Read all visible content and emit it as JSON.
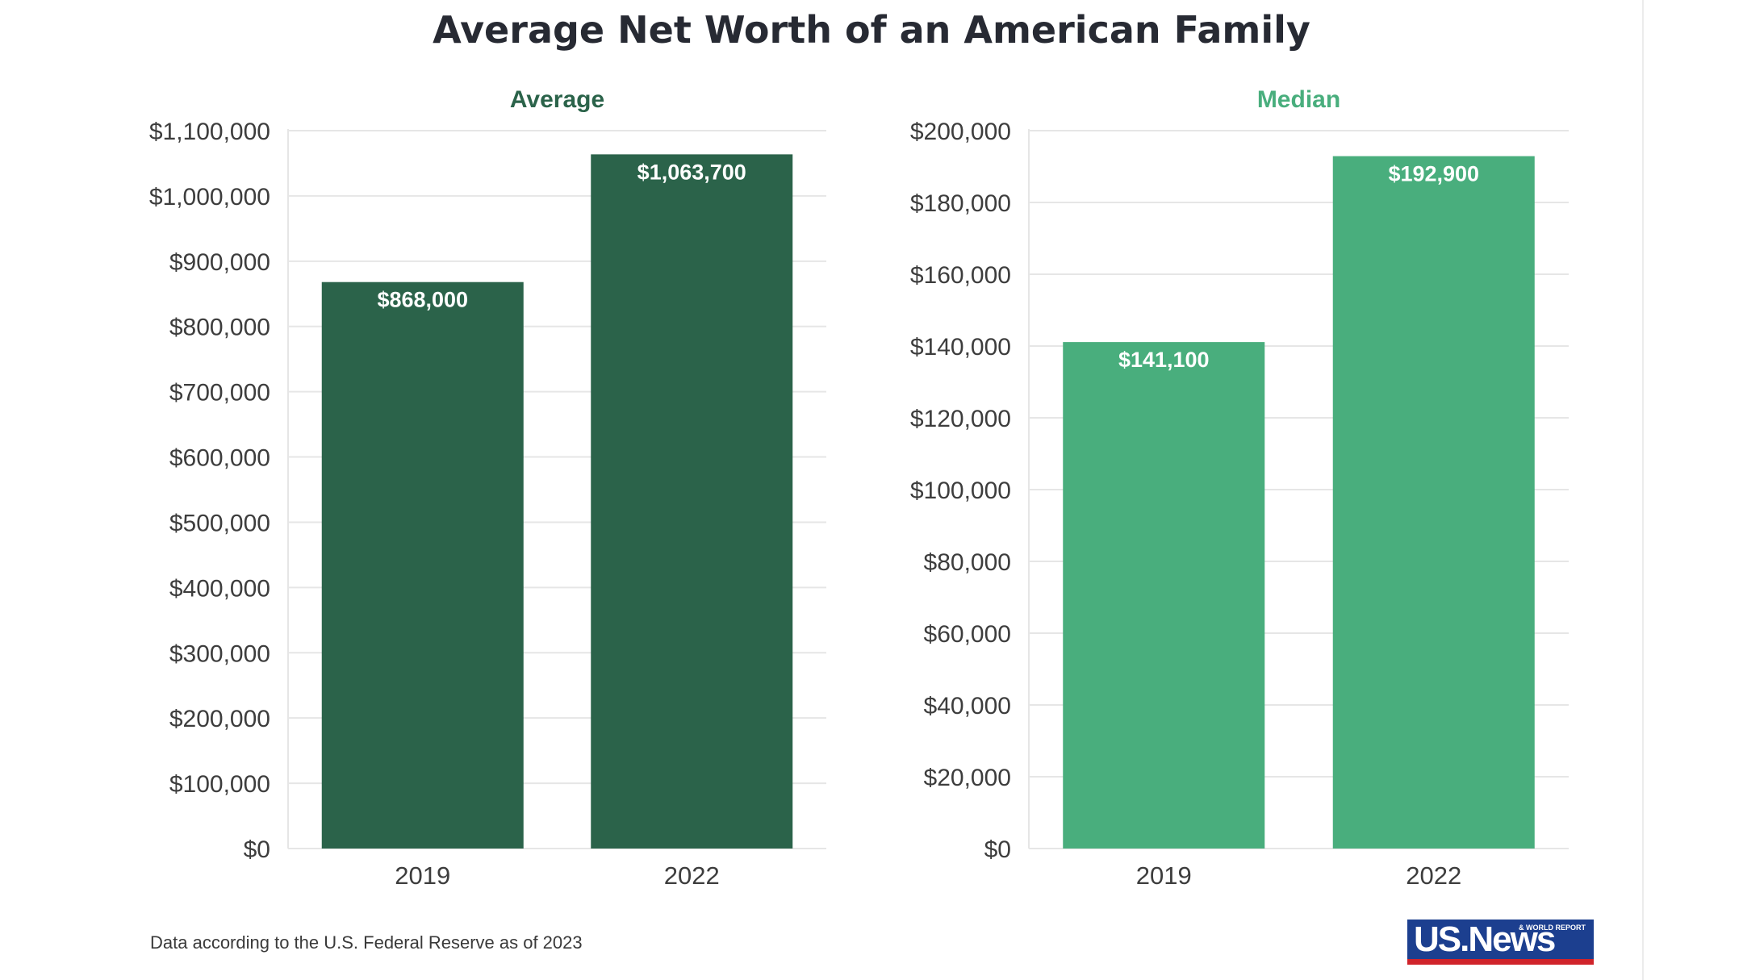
{
  "title": "Average Net Worth of an American Family",
  "footer": "Data according to the U.S. Federal Reserve as of 2023",
  "logo": {
    "text": "US.News",
    "subtext": "& WORLD REPORT"
  },
  "colors": {
    "average": "#2b634a",
    "median": "#49ae7d",
    "title": "#272a33",
    "grid": "#e6e6e6"
  },
  "chart_data": [
    {
      "type": "bar",
      "title": "Average",
      "color": "#2b634a",
      "categories": [
        "2019",
        "2022"
      ],
      "values": [
        868000,
        1063700
      ],
      "value_labels": [
        "$868,000",
        "$1,063,700"
      ],
      "ylim": [
        0,
        1100000
      ],
      "yticks": [
        0,
        100000,
        200000,
        300000,
        400000,
        500000,
        600000,
        700000,
        800000,
        900000,
        1000000,
        1100000
      ],
      "ytick_labels": [
        "$0",
        "$100,000",
        "$200,000",
        "$300,000",
        "$400,000",
        "$500,000",
        "$600,000",
        "$700,000",
        "$800,000",
        "$900,000",
        "$1,000,000",
        "$1,100,000"
      ],
      "grid": true
    },
    {
      "type": "bar",
      "title": "Median",
      "color": "#49ae7d",
      "categories": [
        "2019",
        "2022"
      ],
      "values": [
        141100,
        192900
      ],
      "value_labels": [
        "$141,100",
        "$192,900"
      ],
      "ylim": [
        0,
        200000
      ],
      "yticks": [
        0,
        20000,
        40000,
        60000,
        80000,
        100000,
        120000,
        140000,
        160000,
        180000,
        200000
      ],
      "ytick_labels": [
        "$0",
        "$20,000",
        "$40,000",
        "$60,000",
        "$80,000",
        "$100,000",
        "$120,000",
        "$140,000",
        "$160,000",
        "$180,000",
        "$200,000"
      ],
      "grid": true
    }
  ]
}
